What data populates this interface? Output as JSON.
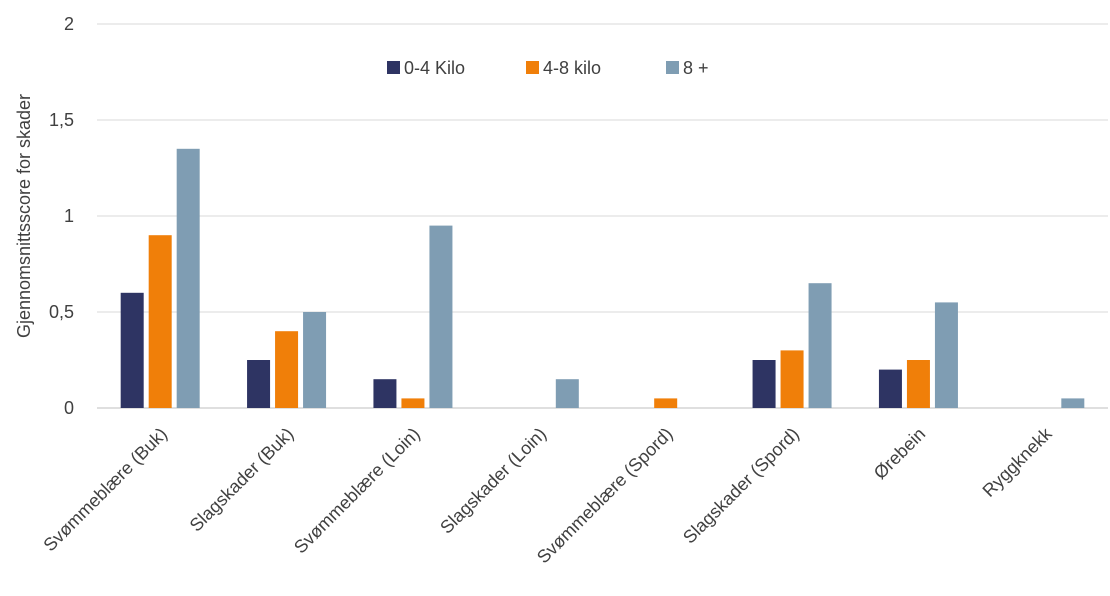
{
  "chart_data": {
    "type": "bar",
    "categories": [
      "Svømmeblære (Buk)",
      "Slagskader (Buk)",
      "Svømmeblære (Loin)",
      "Slagskader (Loin)",
      "Svømmeblære (Spord)",
      "Slagskader (Spord)",
      "Ørebein",
      "Ryggknekk"
    ],
    "series": [
      {
        "name": "0-4 Kilo",
        "color": "#2e3463",
        "values": [
          0.6,
          0.25,
          0.15,
          0,
          0,
          0.25,
          0.2,
          0
        ]
      },
      {
        "name": "4-8 kilo",
        "color": "#f07f09",
        "values": [
          0.9,
          0.4,
          0.05,
          0,
          0.05,
          0.3,
          0.25,
          0
        ]
      },
      {
        "name": "8 +",
        "color": "#7f9db3",
        "values": [
          1.35,
          0.5,
          0.95,
          0.15,
          0,
          0.65,
          0.55,
          0.05
        ]
      }
    ],
    "title": "",
    "xlabel": "",
    "ylabel": "Gjennomsnittsscore for skader",
    "ylim": [
      0,
      2
    ],
    "yticks": [
      0,
      0.5,
      1,
      1.5,
      2
    ],
    "ytick_labels": [
      "0",
      "0,5",
      "1",
      "1,5",
      "2"
    ],
    "grid": true,
    "legend_position": "top-center"
  }
}
